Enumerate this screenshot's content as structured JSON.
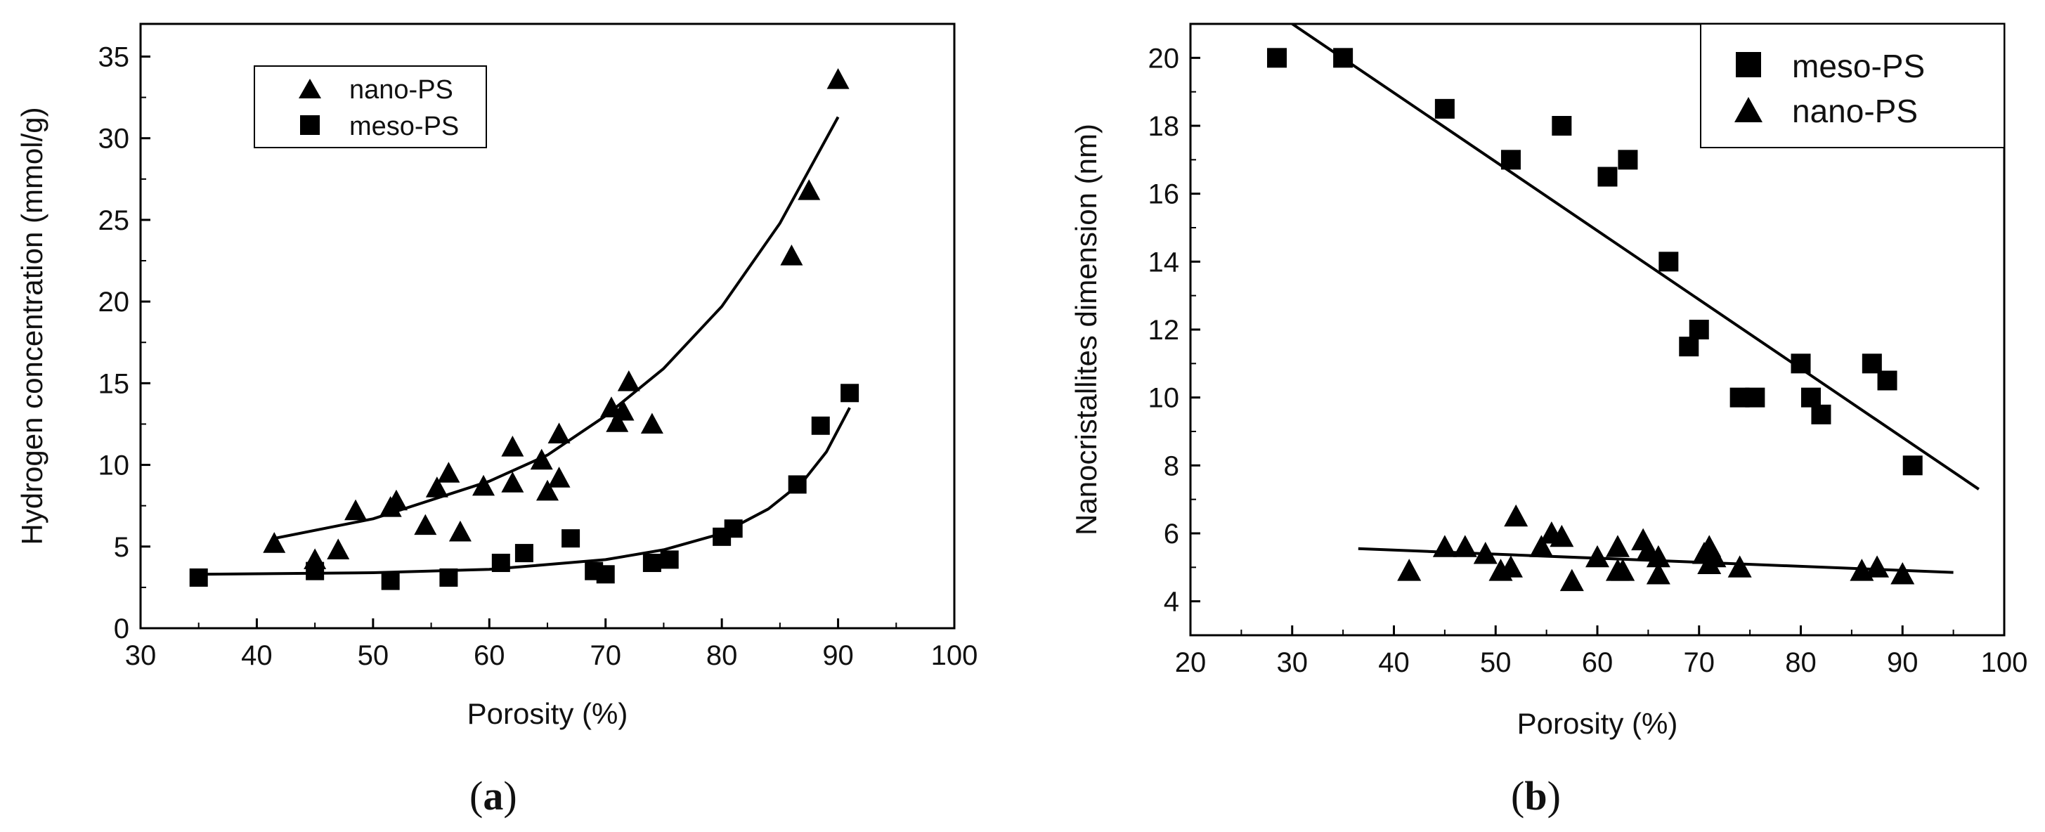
{
  "figure": {
    "panel_a": {
      "open": "(",
      "letter": "a",
      "close": ")"
    },
    "panel_b": {
      "open": "(",
      "letter": "b",
      "close": ")"
    }
  },
  "chart_data": [
    {
      "type": "scatter",
      "panel": "a",
      "title": "",
      "xlabel": "Porosity (%)",
      "ylabel": "Hydrogen concentration (mmol/g)",
      "xlim": [
        30,
        100
      ],
      "ylim": [
        0,
        37
      ],
      "xticks": [
        30,
        40,
        50,
        60,
        70,
        80,
        90,
        100
      ],
      "yticks": [
        0,
        5,
        10,
        15,
        20,
        25,
        30,
        35
      ],
      "legend_position": "top-left",
      "series": [
        {
          "name": "nano-PS",
          "marker": "triangle",
          "x": [
            41.5,
            45,
            47,
            48.5,
            51.5,
            52,
            54.5,
            55.5,
            56.5,
            57.5,
            59.5,
            62,
            62,
            64.5,
            65,
            66,
            66,
            70.5,
            71,
            71.5,
            72,
            74,
            86,
            87.5,
            90
          ],
          "y": [
            5.2,
            4.2,
            4.8,
            7.2,
            7.4,
            7.8,
            6.3,
            8.6,
            9.5,
            5.9,
            8.7,
            11.1,
            8.9,
            10.3,
            8.4,
            9.2,
            11.9,
            13.5,
            12.6,
            13.3,
            15.1,
            12.5,
            22.8,
            26.8,
            33.6
          ],
          "fit": {
            "x": [
              41.5,
              50,
              60,
              65,
              70,
              75,
              80,
              85,
              90
            ],
            "y": [
              5.5,
              6.7,
              9.0,
              10.6,
              13.0,
              15.9,
              19.7,
              24.8,
              31.3
            ]
          }
        },
        {
          "name": "meso-PS",
          "marker": "square",
          "x": [
            35,
            45,
            51.5,
            56.5,
            61,
            63,
            67,
            69,
            70,
            74,
            75.5,
            80,
            81,
            86.5,
            88.5,
            91
          ],
          "y": [
            3.1,
            3.5,
            2.9,
            3.1,
            4.0,
            4.6,
            5.5,
            3.5,
            3.3,
            4.0,
            4.2,
            5.6,
            6.1,
            8.8,
            12.4,
            14.4
          ],
          "fit": {
            "x": [
              35,
              50,
              60,
              65,
              70,
              75,
              80,
              84,
              87,
              89,
              91
            ],
            "y": [
              3.3,
              3.4,
              3.6,
              3.9,
              4.2,
              4.8,
              5.8,
              7.3,
              9.0,
              10.8,
              13.5
            ]
          }
        }
      ]
    },
    {
      "type": "scatter",
      "panel": "b",
      "title": "",
      "xlabel": "Porosity (%)",
      "ylabel": "Nanocristallites dimension (nm)",
      "xlim": [
        20,
        100
      ],
      "ylim": [
        3,
        21
      ],
      "xticks": [
        20,
        30,
        40,
        50,
        60,
        70,
        80,
        90,
        100
      ],
      "yticks": [
        4,
        6,
        8,
        10,
        12,
        14,
        16,
        18,
        20
      ],
      "legend_position": "top-right",
      "series": [
        {
          "name": "meso-PS",
          "marker": "square",
          "x": [
            28.5,
            35,
            45,
            51.5,
            56.5,
            61,
            63,
            67,
            69,
            70,
            74,
            75.5,
            80,
            81,
            82,
            87,
            88.5,
            91
          ],
          "y": [
            20,
            20,
            18.5,
            17,
            18,
            16.5,
            17,
            14,
            11.5,
            12,
            10,
            10,
            11,
            10,
            9.5,
            11,
            10.5,
            8
          ],
          "fit": {
            "x": [
              30,
              97.5
            ],
            "y": [
              21.0,
              7.3
            ]
          }
        },
        {
          "name": "nano-PS",
          "marker": "triangle",
          "x": [
            41.5,
            45,
            47,
            49,
            50.5,
            51.5,
            52,
            54.5,
            55.5,
            56.5,
            57.5,
            60,
            62,
            62,
            62.5,
            64.5,
            65,
            66,
            66,
            70.5,
            71,
            71,
            71.5,
            74,
            86,
            87.5,
            90
          ],
          "y": [
            4.9,
            5.6,
            5.6,
            5.4,
            4.9,
            5.0,
            6.5,
            5.6,
            6.0,
            5.9,
            4.6,
            5.3,
            4.9,
            5.6,
            4.9,
            5.8,
            5.5,
            5.3,
            4.8,
            5.4,
            5.6,
            5.1,
            5.3,
            5.0,
            4.9,
            5.0,
            4.8
          ],
          "fit": {
            "x": [
              36.5,
              95
            ],
            "y": [
              5.55,
              4.85
            ]
          }
        }
      ]
    }
  ]
}
